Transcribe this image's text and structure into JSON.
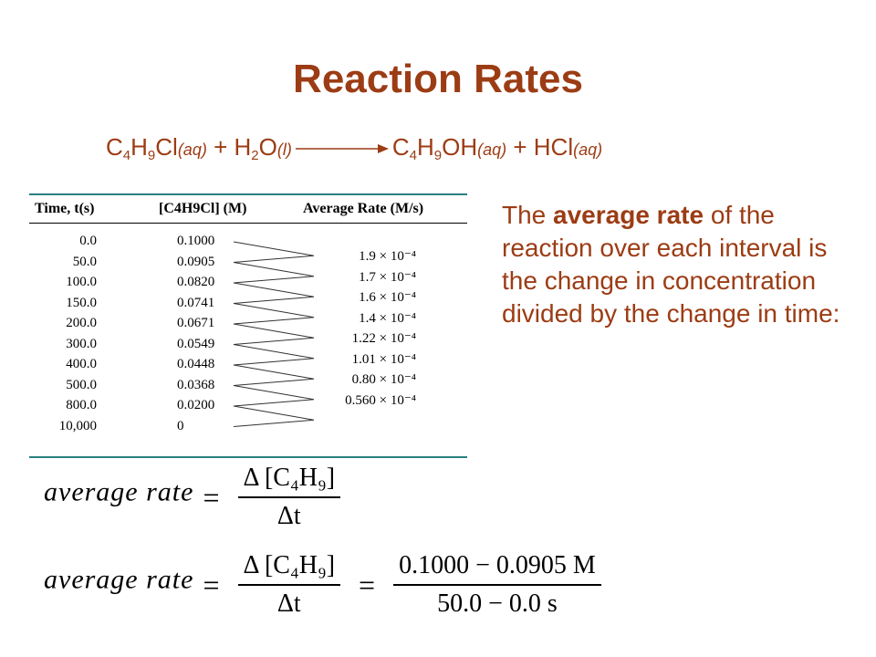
{
  "title": "Reaction Rates",
  "equation": {
    "r1": "C",
    "r1_s1": "4",
    "r1_m": "H",
    "r1_s2": "9",
    "r1_e": "Cl",
    "state_aq": "(aq)",
    "plus": "+",
    "r2": "H",
    "r2_s": "2",
    "r2_e": "O",
    "state_l": "(l)",
    "p1": "C",
    "p1_s1": "4",
    "p1_m": "H",
    "p1_s2": "9",
    "p1_e": "OH",
    "p2": "HCl"
  },
  "table": {
    "headers": [
      "Time, t(s)",
      "[C4H9Cl] (M)",
      "Average Rate (M/s)"
    ],
    "times": [
      "0.0",
      "50.0",
      "100.0",
      "150.0",
      "200.0",
      "300.0",
      "400.0",
      "500.0",
      "800.0",
      "10,000"
    ],
    "concentrations": [
      "0.1000",
      "0.0905",
      "0.0820",
      "0.0741",
      "0.0671",
      "0.0549",
      "0.0448",
      "0.0368",
      "0.0200",
      "0"
    ],
    "rates": [
      "1.9 × 10⁻⁴",
      "1.7 × 10⁻⁴",
      "1.6 × 10⁻⁴",
      "1.4 × 10⁻⁴",
      "1.22 × 10⁻⁴",
      "1.01 × 10⁻⁴",
      "0.80 × 10⁻⁴",
      "0.560 × 10⁻⁴"
    ]
  },
  "explanation": {
    "pre": "The ",
    "bold": "average rate",
    "post": " of the reaction over each interval is the change in concentration divided by the change in time:"
  },
  "formula1": {
    "lhs": "average rate",
    "equals": "=",
    "num": "Δ [C₄H₉]",
    "den": "Δt"
  },
  "formula2": {
    "lhs": "average rate",
    "equals": "=",
    "num": "Δ [C₄H₉]",
    "den": "Δt",
    "equals2": "=",
    "num2": "0.1000 − 0.0905  M",
    "den2": "50.0 − 0.0  s"
  }
}
